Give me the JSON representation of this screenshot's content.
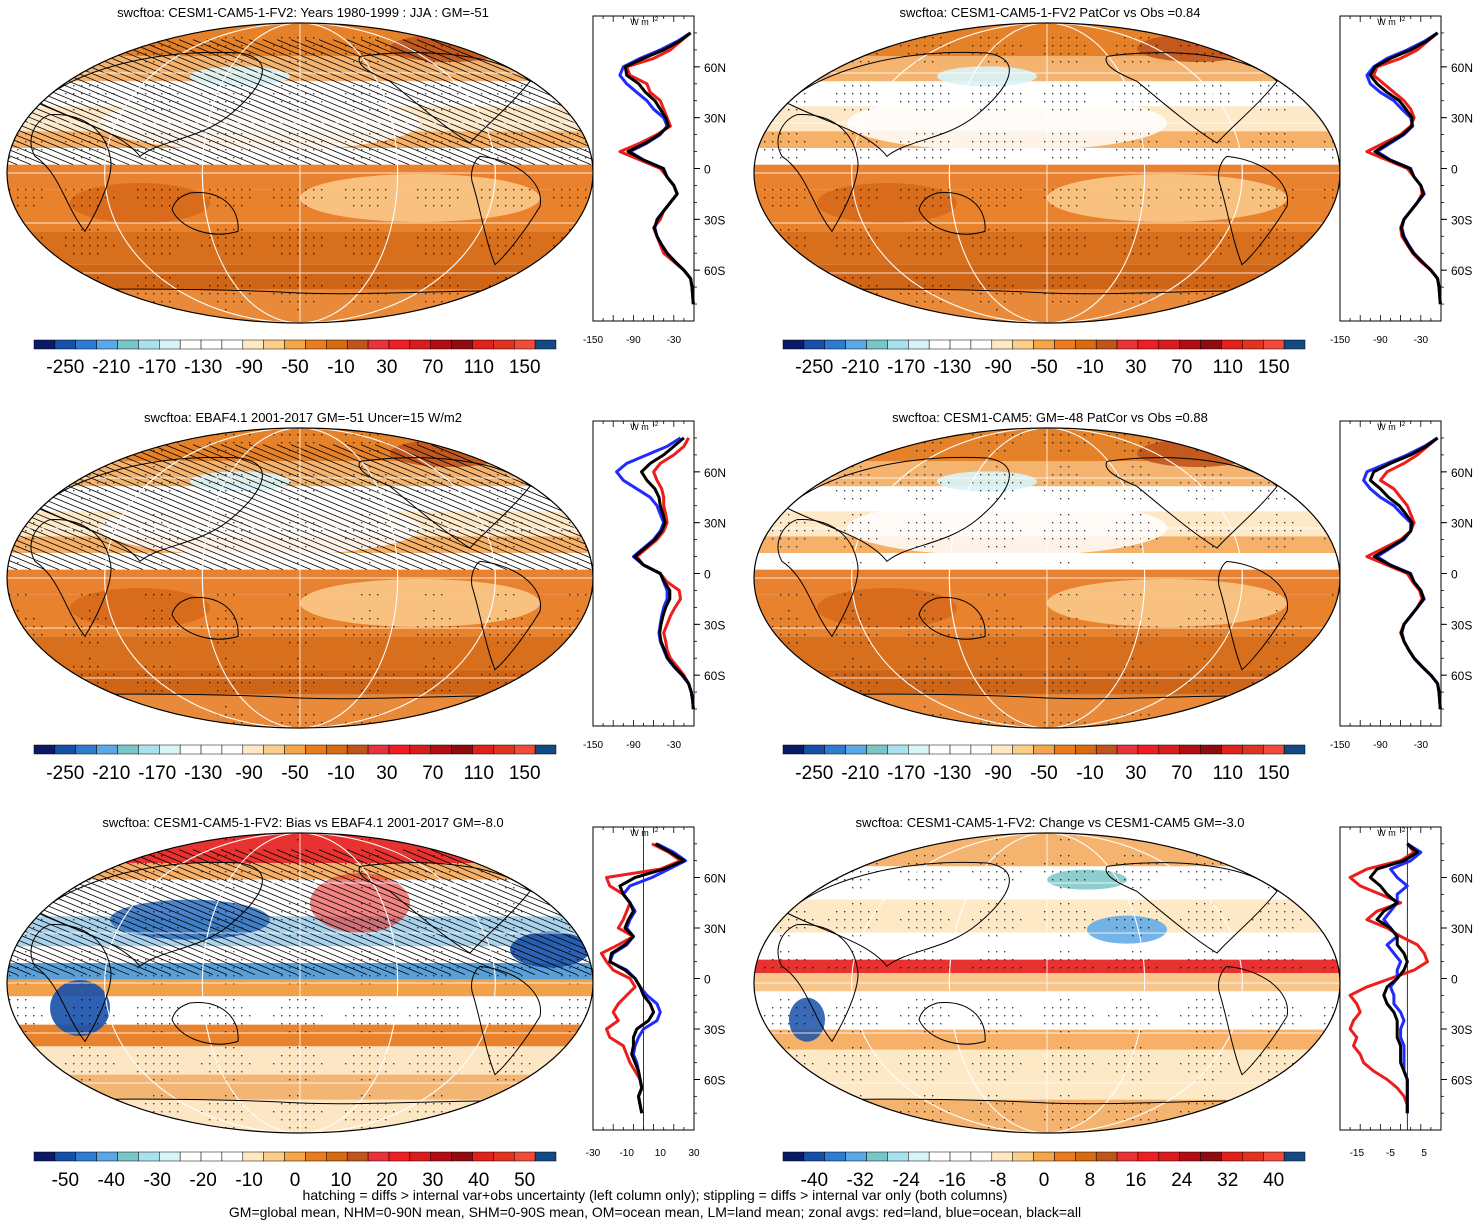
{
  "colors": {
    "land": "#e0e0e0",
    "ocean": "#1f3cff",
    "all": "#000000",
    "land_label": "red=land",
    "ocean_label": "blue=ocean",
    "all_label": "black=all"
  },
  "footnotes": {
    "line1": "hatching = diffs > internal var+obs uncertainty (left column only); stippling = diffs > internal var only (both columns)",
    "line2": "GM=global mean, NHM=0-90N mean, SHM=0-90S mean, OM=ocean mean, LM=land mean; zonal avgs: red=land, blue=ocean, black=all"
  },
  "chart_data": [
    {
      "type": "heatmap",
      "panel": "top-left",
      "title": "swcftoa: CESM1-CAM5-1-FV2: Years 1980-1999 : JJA : GM=-51",
      "colorbar_labels": [
        "-250",
        "-210",
        "-170",
        "-130",
        "-90",
        "-50",
        "-10",
        "30",
        "70",
        "110",
        "150"
      ],
      "colorbar_range": [
        -250,
        150
      ],
      "hatching": true,
      "zonal": {
        "unit": "W m-2",
        "xticks": [
          "-150",
          "-90",
          "-30"
        ],
        "xlim": [
          -150,
          0
        ],
        "yticks": [
          "60N",
          "30N",
          "0",
          "30S",
          "60S"
        ],
        "ylim": [
          -90,
          90
        ],
        "zero_line": false,
        "lat": [
          80,
          75,
          70,
          65,
          60,
          55,
          50,
          45,
          40,
          35,
          30,
          25,
          20,
          15,
          10,
          5,
          0,
          -5,
          -10,
          -15,
          -20,
          -25,
          -30,
          -35,
          -40,
          -45,
          -50,
          -55,
          -60,
          -65,
          -70,
          -75,
          -80
        ],
        "land": [
          -5,
          -20,
          -35,
          -60,
          -100,
          -95,
          -70,
          -65,
          -50,
          -45,
          -40,
          -35,
          -55,
          -80,
          -110,
          -80,
          -50,
          -40,
          -30,
          -25,
          -35,
          -45,
          -50,
          -60,
          -55,
          -50,
          -45,
          -30,
          -15,
          -5,
          -3,
          -2,
          -1
        ],
        "ocean": [
          -5,
          -25,
          -50,
          -80,
          -105,
          -110,
          -100,
          -85,
          -70,
          -60,
          -45,
          -40,
          -50,
          -70,
          -95,
          -75,
          -45,
          -40,
          -30,
          -25,
          -35,
          -45,
          -55,
          -58,
          -55,
          -48,
          -40,
          -28,
          -15,
          -5,
          -3,
          -2,
          -1
        ],
        "all": [
          -5,
          -22,
          -45,
          -75,
          -102,
          -100,
          -82,
          -72,
          -58,
          -50,
          -42,
          -38,
          -52,
          -72,
          -98,
          -75,
          -46,
          -40,
          -30,
          -25,
          -35,
          -45,
          -54,
          -59,
          -55,
          -48,
          -40,
          -28,
          -15,
          -5,
          -3,
          -2,
          -1
        ]
      }
    },
    {
      "type": "heatmap",
      "panel": "top-right",
      "title": "swcftoa: CESM1-CAM5-1-FV2 PatCor vs Obs =0.84",
      "colorbar_labels": [
        "-250",
        "-210",
        "-170",
        "-130",
        "-90",
        "-50",
        "-10",
        "30",
        "70",
        "110",
        "150"
      ],
      "colorbar_range": [
        -250,
        150
      ],
      "hatching": false,
      "zonal": {
        "unit": "W m-2",
        "xticks": [
          "-150",
          "-90",
          "-30"
        ],
        "xlim": [
          -150,
          0
        ],
        "yticks": [
          "60N",
          "30N",
          "0",
          "30S",
          "60S"
        ],
        "ylim": [
          -90,
          90
        ],
        "zero_line": false,
        "lat": [
          80,
          75,
          70,
          65,
          60,
          55,
          50,
          45,
          40,
          35,
          30,
          25,
          20,
          15,
          10,
          5,
          0,
          -5,
          -10,
          -15,
          -20,
          -25,
          -30,
          -35,
          -40,
          -45,
          -50,
          -55,
          -60,
          -65,
          -70,
          -75,
          -80
        ],
        "land": [
          -5,
          -20,
          -35,
          -60,
          -95,
          -100,
          -85,
          -70,
          -55,
          -45,
          -40,
          -45,
          -60,
          -85,
          -110,
          -80,
          -50,
          -40,
          -30,
          -28,
          -35,
          -45,
          -55,
          -60,
          -58,
          -50,
          -42,
          -30,
          -15,
          -5,
          -3,
          -2,
          -1
        ],
        "ocean": [
          -5,
          -25,
          -50,
          -80,
          -100,
          -110,
          -105,
          -90,
          -70,
          -58,
          -45,
          -42,
          -55,
          -75,
          -95,
          -75,
          -45,
          -40,
          -30,
          -25,
          -35,
          -45,
          -55,
          -58,
          -55,
          -48,
          -40,
          -28,
          -15,
          -5,
          -3,
          -2,
          -1
        ],
        "all": [
          -5,
          -22,
          -45,
          -75,
          -98,
          -105,
          -95,
          -80,
          -62,
          -52,
          -43,
          -43,
          -57,
          -78,
          -98,
          -76,
          -46,
          -40,
          -30,
          -26,
          -35,
          -45,
          -55,
          -59,
          -56,
          -49,
          -41,
          -28,
          -15,
          -5,
          -3,
          -2,
          -1
        ]
      }
    },
    {
      "type": "heatmap",
      "panel": "middle-left",
      "title": "swcftoa: EBAF4.1 2001-2017 GM=-51 Uncer=15 W/m2",
      "colorbar_labels": [
        "-250",
        "-210",
        "-170",
        "-130",
        "-90",
        "-50",
        "-10",
        "30",
        "70",
        "110",
        "150"
      ],
      "colorbar_range": [
        -250,
        150
      ],
      "hatching": true,
      "zonal": {
        "unit": "W m-2",
        "xticks": [
          "-150",
          "-90",
          "-30"
        ],
        "xlim": [
          -150,
          0
        ],
        "yticks": [
          "60N",
          "30N",
          "0",
          "30S",
          "60S"
        ],
        "ylim": [
          -90,
          90
        ],
        "zero_line": false,
        "lat": [
          80,
          75,
          70,
          65,
          60,
          55,
          50,
          45,
          40,
          35,
          30,
          25,
          20,
          15,
          10,
          5,
          0,
          -5,
          -10,
          -15,
          -20,
          -25,
          -30,
          -35,
          -40,
          -45,
          -50,
          -55,
          -60,
          -65,
          -70,
          -75,
          -80
        ],
        "land": [
          -8,
          -15,
          -30,
          -50,
          -60,
          -55,
          -48,
          -45,
          -45,
          -42,
          -40,
          -45,
          -55,
          -70,
          -85,
          -75,
          -50,
          -40,
          -22,
          -20,
          -28,
          -35,
          -40,
          -45,
          -42,
          -40,
          -35,
          -25,
          -15,
          -8,
          -4,
          -2,
          -1
        ],
        "ocean": [
          -20,
          -40,
          -70,
          -100,
          -115,
          -105,
          -85,
          -65,
          -55,
          -50,
          -45,
          -50,
          -60,
          -75,
          -90,
          -75,
          -50,
          -45,
          -40,
          -40,
          -45,
          -48,
          -50,
          -52,
          -50,
          -45,
          -40,
          -30,
          -18,
          -8,
          -4,
          -2,
          -1
        ],
        "all": [
          -15,
          -30,
          -45,
          -65,
          -78,
          -70,
          -58,
          -52,
          -50,
          -46,
          -43,
          -48,
          -58,
          -73,
          -88,
          -75,
          -50,
          -44,
          -36,
          -36,
          -42,
          -46,
          -49,
          -51,
          -49,
          -44,
          -39,
          -29,
          -17,
          -8,
          -4,
          -2,
          -1
        ]
      }
    },
    {
      "type": "heatmap",
      "panel": "middle-right",
      "title": "swcftoa: CESM1-CAM5: GM=-48 PatCor vs Obs =0.88",
      "colorbar_labels": [
        "-250",
        "-210",
        "-170",
        "-130",
        "-90",
        "-50",
        "-10",
        "30",
        "70",
        "110",
        "150"
      ],
      "colorbar_range": [
        -250,
        150
      ],
      "hatching": false,
      "zonal": {
        "unit": "W m-2",
        "xticks": [
          "-150",
          "-90",
          "-30"
        ],
        "xlim": [
          -150,
          0
        ],
        "yticks": [
          "60N",
          "30N",
          "0",
          "30S",
          "60S"
        ],
        "ylim": [
          -90,
          90
        ],
        "zero_line": false,
        "lat": [
          80,
          75,
          70,
          65,
          60,
          55,
          50,
          45,
          40,
          35,
          30,
          25,
          20,
          15,
          10,
          5,
          0,
          -5,
          -10,
          -15,
          -20,
          -25,
          -30,
          -35,
          -40,
          -45,
          -50,
          -55,
          -60,
          -65,
          -70,
          -75,
          -80
        ],
        "land": [
          -5,
          -20,
          -35,
          -55,
          -80,
          -90,
          -70,
          -60,
          -50,
          -45,
          -40,
          -45,
          -60,
          -85,
          -110,
          -80,
          -50,
          -42,
          -32,
          -28,
          -35,
          -45,
          -55,
          -60,
          -55,
          -48,
          -40,
          -28,
          -15,
          -5,
          -3,
          -2,
          -1
        ],
        "ocean": [
          -5,
          -25,
          -50,
          -80,
          -110,
          -115,
          -105,
          -90,
          -70,
          -58,
          -45,
          -45,
          -55,
          -75,
          -95,
          -75,
          -45,
          -40,
          -30,
          -25,
          -35,
          -45,
          -55,
          -58,
          -55,
          -48,
          -40,
          -28,
          -15,
          -5,
          -3,
          -2,
          -1
        ],
        "all": [
          -5,
          -22,
          -45,
          -75,
          -100,
          -105,
          -90,
          -78,
          -62,
          -52,
          -43,
          -45,
          -57,
          -78,
          -99,
          -76,
          -46,
          -40,
          -30,
          -26,
          -35,
          -45,
          -55,
          -59,
          -55,
          -48,
          -40,
          -28,
          -15,
          -5,
          -3,
          -2,
          -1
        ]
      }
    },
    {
      "type": "heatmap",
      "panel": "bottom-left",
      "title": "swcftoa: CESM1-CAM5-1-FV2: Bias vs EBAF4.1 2001-2017 GM=-8.0",
      "colorbar_labels": [
        "-50",
        "-40",
        "-30",
        "-20",
        "-10",
        "0",
        "10",
        "20",
        "30",
        "40",
        "50"
      ],
      "colorbar_range": [
        -50,
        50
      ],
      "hatching": true,
      "zonal": {
        "unit": "W m-2",
        "xticks": [
          "-30",
          "-10",
          "10",
          "30"
        ],
        "xlim": [
          -30,
          30
        ],
        "yticks": [
          "60N",
          "30N",
          "0",
          "30S",
          "60S"
        ],
        "ylim": [
          -90,
          90
        ],
        "zero_line": true,
        "lat": [
          80,
          75,
          70,
          65,
          60,
          55,
          50,
          45,
          40,
          35,
          30,
          25,
          20,
          15,
          10,
          5,
          0,
          -5,
          -10,
          -15,
          -20,
          -25,
          -30,
          -35,
          -40,
          -45,
          -50,
          -55,
          -60,
          -65,
          -70,
          -75,
          -80
        ],
        "land": [
          5,
          15,
          22,
          10,
          -22,
          -20,
          -12,
          -8,
          -10,
          -12,
          -15,
          -6,
          -15,
          -25,
          -22,
          -18,
          -8,
          -5,
          -10,
          -15,
          -18,
          -15,
          -22,
          -20,
          -12,
          -10,
          -8,
          -5,
          -2,
          -1,
          -3,
          -2,
          -1
        ],
        "ocean": [
          8,
          18,
          25,
          15,
          5,
          -8,
          -12,
          -8,
          -5,
          -8,
          -10,
          -6,
          -10,
          -18,
          -20,
          -10,
          -5,
          -2,
          2,
          8,
          10,
          8,
          0,
          -3,
          -5,
          -6,
          -4,
          -3,
          -2,
          -1,
          -3,
          -2,
          -1
        ],
        "all": [
          7,
          16,
          24,
          12,
          -5,
          -14,
          -12,
          -8,
          -6,
          -9,
          -11,
          -6,
          -11,
          -19,
          -20,
          -11,
          -5,
          -2,
          0,
          4,
          6,
          3,
          -4,
          -6,
          -6,
          -7,
          -5,
          -3,
          -2,
          -1,
          -3,
          -2,
          -1
        ]
      }
    },
    {
      "type": "heatmap",
      "panel": "bottom-right",
      "title": "swcftoa: CESM1-CAM5-1-FV2: Change vs CESM1-CAM5 GM=-3.0",
      "colorbar_labels": [
        "-40",
        "-32",
        "-24",
        "-16",
        "-8",
        "0",
        "8",
        "16",
        "24",
        "32",
        "40"
      ],
      "colorbar_range": [
        -40,
        40
      ],
      "hatching": false,
      "zonal": {
        "unit": "W m-2",
        "xticks": [
          "-15",
          "-5",
          "5"
        ],
        "xlim": [
          -20,
          10
        ],
        "yticks": [
          "60N",
          "30N",
          "0",
          "30S",
          "60S"
        ],
        "ylim": [
          -90,
          90
        ],
        "zero_line": true,
        "lat": [
          80,
          75,
          70,
          65,
          60,
          55,
          50,
          45,
          40,
          35,
          30,
          25,
          20,
          15,
          10,
          5,
          0,
          -5,
          -10,
          -15,
          -20,
          -25,
          -30,
          -35,
          -40,
          -45,
          -50,
          -55,
          -60,
          -65,
          -70,
          -75,
          -80
        ],
        "land": [
          0,
          2,
          -2,
          -12,
          -17,
          -14,
          -8,
          -2,
          -9,
          -12,
          -6,
          -2,
          3,
          5,
          6,
          2,
          -5,
          -12,
          -17,
          -15,
          -14,
          -16,
          -17,
          -15,
          -16,
          -14,
          -13,
          -10,
          -6,
          -3,
          -1,
          0,
          0
        ],
        "ocean": [
          0,
          4,
          1,
          -5,
          -3,
          0,
          -3,
          -3,
          -5,
          -7,
          -5,
          -3,
          -6,
          -4,
          -2,
          -3,
          -3,
          -5,
          -4,
          -4,
          -2,
          -1,
          -2,
          -2,
          -1,
          -1,
          -1,
          -1,
          0,
          0,
          0,
          0,
          0
        ],
        "all": [
          0,
          3,
          -1,
          -9,
          -11,
          -8,
          -6,
          -3,
          -7,
          -9,
          -5,
          -3,
          -3,
          -1,
          0,
          -1,
          -3,
          -6,
          -7,
          -6,
          -4,
          -3,
          -3,
          -3,
          -2,
          -2,
          -2,
          -1,
          0,
          0,
          0,
          0,
          0
        ]
      }
    }
  ]
}
